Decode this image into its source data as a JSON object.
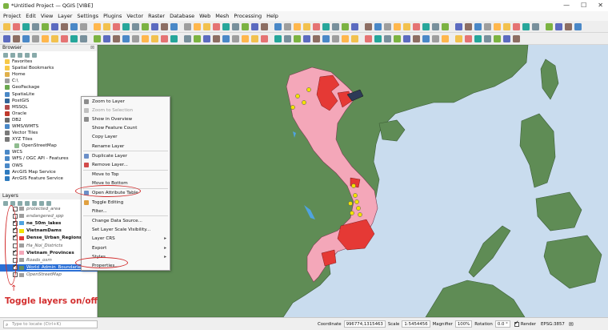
{
  "window": {
    "title": "*Untitled Project — QGIS [VIBE]",
    "controls": [
      "—",
      "☐",
      "✕"
    ]
  },
  "menubar": [
    "Project",
    "Edit",
    "View",
    "Layer",
    "Settings",
    "Plugins",
    "Vector",
    "Raster",
    "Database",
    "Web",
    "Mesh",
    "Processing",
    "Help"
  ],
  "browser": {
    "title": "Browser",
    "items": [
      {
        "label": "Favorites",
        "icon": "star-icon",
        "sub": false
      },
      {
        "label": "Spatial Bookmarks",
        "icon": "bookmark-icon",
        "sub": false
      },
      {
        "label": "Home",
        "icon": "folder-icon",
        "sub": false
      },
      {
        "label": "C:\\",
        "icon": "drive-icon",
        "sub": false
      },
      {
        "label": "GeoPackage",
        "icon": "geopackage-icon",
        "sub": false
      },
      {
        "label": "SpatiaLite",
        "icon": "spatialite-icon",
        "sub": false
      },
      {
        "label": "PostGIS",
        "icon": "postgis-icon",
        "sub": false
      },
      {
        "label": "MSSQL",
        "icon": "mssql-icon",
        "sub": false
      },
      {
        "label": "Oracle",
        "icon": "oracle-icon",
        "sub": false
      },
      {
        "label": "DB2",
        "icon": "db2-icon",
        "sub": false
      },
      {
        "label": "WMS/WMTS",
        "icon": "wms-icon",
        "sub": false
      },
      {
        "label": "Vector Tiles",
        "icon": "vector-tiles-icon",
        "sub": false
      },
      {
        "label": "XYZ Tiles",
        "icon": "xyz-icon",
        "sub": false
      },
      {
        "label": "OpenStreetMap",
        "icon": "osm-icon",
        "sub": true
      },
      {
        "label": "WCS",
        "icon": "wcs-icon",
        "sub": false
      },
      {
        "label": "WFS / OGC API - Features",
        "icon": "wfs-icon",
        "sub": false
      },
      {
        "label": "OWS",
        "icon": "ows-icon",
        "sub": false
      },
      {
        "label": "ArcGIS Map Service",
        "icon": "arcgis-icon",
        "sub": false
      },
      {
        "label": "ArcGIS Feature Service",
        "icon": "arcgis-feature-icon",
        "sub": false
      }
    ]
  },
  "layers_panel": {
    "title": "Layers",
    "items": [
      {
        "label": "protected_area",
        "checked": false,
        "swatch": "#9e9e9e",
        "style": "ital"
      },
      {
        "label": "endangered_spp",
        "checked": false,
        "swatch": "#9e9e9e",
        "style": "ital"
      },
      {
        "label": "ne_50m_lakes",
        "checked": true,
        "swatch": "#4fa3e0",
        "style": "bold"
      },
      {
        "label": "VietnamDams",
        "checked": true,
        "swatch": "#f2e200",
        "style": "bold"
      },
      {
        "label": "Dense_Urban_Regions",
        "checked": true,
        "swatch": "#e53935",
        "style": "bold"
      },
      {
        "label": "Ha_Noi_Districts",
        "checked": false,
        "swatch": "#9e9e9e",
        "style": "ital"
      },
      {
        "label": "Vietnam_Provinces",
        "checked": true,
        "swatch": "#f4a7b9",
        "style": "bold"
      },
      {
        "label": "Roads_osm",
        "checked": false,
        "swatch": "#9e9e9e",
        "style": "ital"
      },
      {
        "label": "World_Admin_Boundaries",
        "checked": true,
        "swatch": "#6a8f5c",
        "style": "sel"
      },
      {
        "label": "OpenStreetMap",
        "checked": false,
        "swatch": "#9e9e9e",
        "style": "ital"
      }
    ]
  },
  "context_menu": {
    "items": [
      {
        "label": "Zoom to Layer",
        "disabled": false,
        "submenu": false,
        "icon": "#8d8d8d"
      },
      {
        "label": "Zoom to Selection",
        "disabled": true,
        "submenu": false,
        "icon": "#c0c0c0"
      },
      {
        "label": "Show in Overview",
        "disabled": false,
        "submenu": false,
        "icon": "#8d8d8d"
      },
      {
        "label": "Show Feature Count",
        "disabled": false,
        "submenu": false,
        "icon": null
      },
      {
        "label": "Copy Layer",
        "disabled": false,
        "submenu": false,
        "icon": null
      },
      {
        "label": "Rename Layer",
        "disabled": false,
        "submenu": false,
        "icon": null
      },
      {
        "label": "Duplicate Layer",
        "disabled": false,
        "submenu": false,
        "icon": "#6b8fc8"
      },
      {
        "label": "Remove Layer...",
        "disabled": false,
        "submenu": false,
        "icon": "#d24b4b"
      },
      {
        "label": "Move to Top",
        "disabled": false,
        "submenu": false,
        "icon": null
      },
      {
        "label": "Move to Bottom",
        "disabled": false,
        "submenu": false,
        "icon": null
      },
      {
        "label": "Open Attribute Table",
        "disabled": false,
        "submenu": false,
        "icon": "#6b8fc8"
      },
      {
        "label": "Toggle Editing",
        "disabled": false,
        "submenu": false,
        "icon": "#e0a040"
      },
      {
        "label": "Filter...",
        "disabled": false,
        "submenu": false,
        "icon": null
      },
      {
        "label": "Change Data Source...",
        "disabled": false,
        "submenu": false,
        "icon": null
      },
      {
        "label": "Set Layer Scale Visibility...",
        "disabled": false,
        "submenu": false,
        "icon": null
      },
      {
        "label": "Layer CRS",
        "disabled": false,
        "submenu": true,
        "icon": null
      },
      {
        "label": "Export",
        "disabled": false,
        "submenu": true,
        "icon": null
      },
      {
        "label": "Styles",
        "disabled": false,
        "submenu": true,
        "icon": null
      },
      {
        "label": "Properties...",
        "disabled": false,
        "submenu": false,
        "icon": null
      }
    ]
  },
  "annotation": {
    "text": "Toggle layers on/off"
  },
  "statusbar": {
    "search_placeholder": "Type to locate (Ctrl+K)",
    "coordinate_label": "Coordinate",
    "coordinate_value": "996774,1315463",
    "scale_label": "Scale",
    "scale_value": "1:5454456",
    "magnifier_label": "Magnifier",
    "magnifier_value": "100%",
    "rotation_label": "Rotation",
    "rotation_value": "0.0 °",
    "render_label": "Render",
    "crs_label": "EPSG:3857"
  },
  "colors": {
    "land": "#5f8c55",
    "water": "#c9dcee",
    "vietnam_provinces": "#f4a7b9",
    "urban": "#e53935",
    "dams": "#f2e200",
    "annotation": "#d32f2f",
    "selection": "#2a6fd6"
  }
}
